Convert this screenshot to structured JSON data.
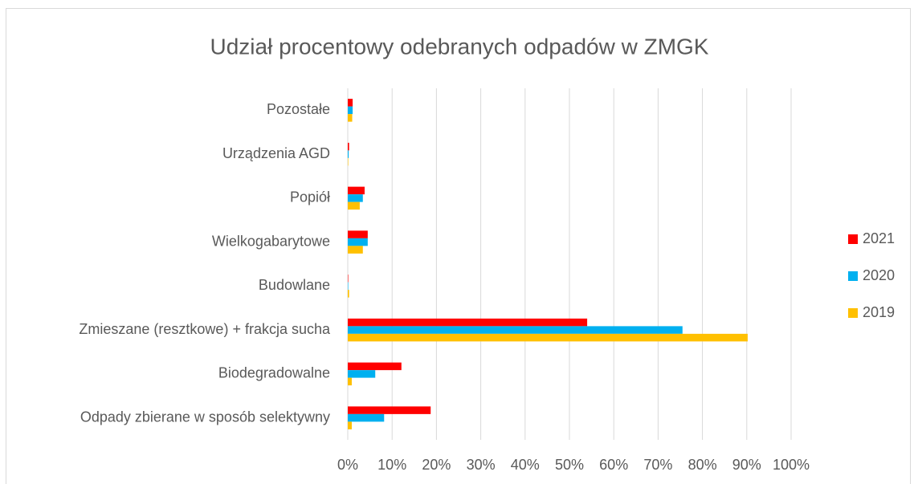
{
  "chart_data": {
    "type": "hbar",
    "title": "Udział procentowy odebranych odpadów w ZMGK",
    "categories": [
      "Pozostałe",
      "Urządzenia AGD",
      "Popiół",
      "Wielkogabarytowe",
      "Budowlane",
      "Zmieszane (resztkowe) + frakcja sucha",
      "Biodegradowalne",
      "Odpady zbierane w sposób selektywny"
    ],
    "series": [
      {
        "name": "2021",
        "color": "#ff0000",
        "values": [
          1.1,
          0.3,
          3.8,
          4.5,
          0.1,
          54.0,
          12.1,
          18.7
        ]
      },
      {
        "name": "2020",
        "color": "#00b0f0",
        "values": [
          1.1,
          0.2,
          3.4,
          4.5,
          0.1,
          75.5,
          6.2,
          8.2
        ]
      },
      {
        "name": "2019",
        "color": "#ffc000",
        "values": [
          1.0,
          0.1,
          2.7,
          3.4,
          0.3,
          90.2,
          0.9,
          0.9
        ]
      }
    ],
    "xlim": [
      0,
      100
    ],
    "xticks": [
      {
        "value": 0,
        "label": "0%"
      },
      {
        "value": 10,
        "label": "10%"
      },
      {
        "value": 20,
        "label": "20%"
      },
      {
        "value": 30,
        "label": "30%"
      },
      {
        "value": 40,
        "label": "40%"
      },
      {
        "value": 50,
        "label": "50%"
      },
      {
        "value": 60,
        "label": "60%"
      },
      {
        "value": 70,
        "label": "70%"
      },
      {
        "value": 80,
        "label": "80%"
      },
      {
        "value": 90,
        "label": "90%"
      },
      {
        "value": 100,
        "label": "100%"
      }
    ],
    "grid": true,
    "legend": "right"
  }
}
